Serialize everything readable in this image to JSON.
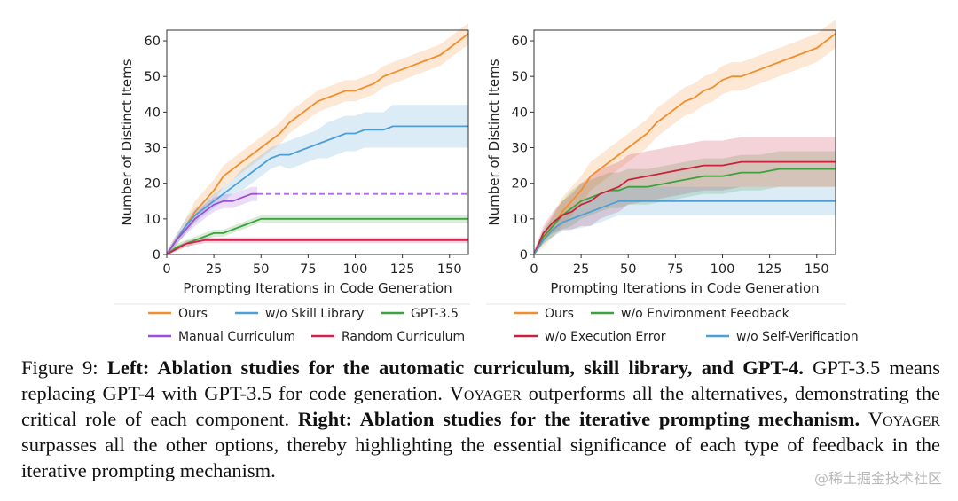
{
  "chart_data": [
    {
      "type": "line",
      "panel": "left",
      "xlabel": "Prompting Iterations in Code Generation",
      "ylabel": "Number of Distinct Items",
      "xlim": [
        0,
        160
      ],
      "ylim": [
        0,
        63
      ],
      "xticks": [
        0,
        25,
        50,
        75,
        100,
        125,
        150
      ],
      "yticks": [
        0,
        10,
        20,
        30,
        40,
        50,
        60
      ],
      "series": [
        {
          "key": "ours",
          "name": "Ours",
          "color": "#f28e2b",
          "dashed": false,
          "x": [
            0,
            5,
            10,
            15,
            20,
            25,
            30,
            35,
            40,
            45,
            50,
            55,
            60,
            65,
            70,
            75,
            80,
            85,
            90,
            95,
            100,
            105,
            110,
            115,
            120,
            125,
            130,
            135,
            140,
            145,
            150,
            155,
            160
          ],
          "y": [
            0,
            4,
            8,
            12,
            15,
            18,
            22,
            24,
            26,
            28,
            30,
            32,
            34,
            37,
            39,
            41,
            43,
            44,
            45,
            46,
            46,
            47,
            48,
            50,
            51,
            52,
            53,
            54,
            55,
            56,
            58,
            60,
            62
          ],
          "band": [
            1,
            1.5,
            2,
            3,
            3,
            3,
            3,
            3,
            3,
            3,
            3,
            3,
            3,
            3,
            3,
            3,
            3,
            3,
            3,
            3,
            3,
            3,
            3,
            3,
            3,
            3,
            3,
            3,
            3,
            3,
            3,
            3,
            3
          ]
        },
        {
          "key": "skill",
          "name": "w/o Skill Library",
          "color": "#4e9fd6",
          "dashed": false,
          "x": [
            0,
            5,
            10,
            15,
            20,
            25,
            30,
            35,
            40,
            45,
            50,
            55,
            60,
            65,
            70,
            75,
            80,
            85,
            90,
            95,
            100,
            105,
            110,
            115,
            120,
            125,
            130,
            135,
            140,
            145,
            150,
            155,
            160
          ],
          "y": [
            0,
            4,
            8,
            11,
            13,
            15,
            17,
            19,
            21,
            23,
            25,
            27,
            28,
            28,
            29,
            30,
            31,
            32,
            33,
            34,
            34,
            35,
            35,
            35,
            36,
            36,
            36,
            36,
            36,
            36,
            36,
            36,
            36
          ],
          "band": [
            1,
            1.5,
            2,
            2,
            2,
            2,
            2,
            2,
            3,
            3,
            3,
            3,
            3,
            4,
            4,
            4,
            4,
            5,
            5,
            5,
            5,
            5,
            5,
            5,
            6,
            6,
            6,
            6,
            6,
            6,
            6,
            6,
            6
          ]
        },
        {
          "key": "gpt35",
          "name": "GPT-3.5",
          "color": "#3ea03e",
          "dashed": false,
          "x": [
            0,
            5,
            10,
            15,
            20,
            25,
            30,
            35,
            40,
            45,
            50,
            55,
            60,
            80,
            100,
            120,
            140,
            160
          ],
          "y": [
            0,
            2,
            3,
            4,
            5,
            6,
            6,
            7,
            8,
            9,
            10,
            10,
            10,
            10,
            10,
            10,
            10,
            10
          ],
          "band": [
            0.5,
            1,
            1,
            1,
            1,
            1,
            1,
            1,
            1,
            1,
            1,
            1,
            1,
            1,
            1,
            1,
            1,
            1
          ]
        },
        {
          "key": "manual",
          "name": "Manual Curriculum",
          "color": "#9b4fd8",
          "dashed": false,
          "x": [
            0,
            5,
            10,
            15,
            20,
            25,
            30,
            35,
            40,
            45,
            48
          ],
          "y": [
            0,
            4,
            7,
            10,
            12,
            14,
            15,
            15,
            16,
            17,
            17
          ],
          "band": [
            0.5,
            1,
            1.5,
            2,
            2,
            2,
            2,
            2,
            2,
            2,
            2
          ]
        },
        {
          "key": "manual_ext",
          "name": "",
          "color": "#b06ae6",
          "dashed": true,
          "x": [
            48,
            160
          ],
          "y": [
            17,
            17
          ],
          "band": [
            0,
            0
          ]
        },
        {
          "key": "random",
          "name": "Random Curriculum",
          "color": "#d6204e",
          "dashed": false,
          "x": [
            0,
            5,
            10,
            15,
            20,
            25,
            30,
            35,
            40,
            60,
            80,
            100,
            120,
            140,
            160
          ],
          "y": [
            0,
            1.5,
            3,
            3.5,
            4,
            4,
            4,
            4,
            4,
            4,
            4,
            4,
            4,
            4,
            4
          ],
          "band": [
            0.3,
            0.6,
            0.8,
            0.8,
            0.8,
            0.8,
            0.8,
            0.8,
            0.8,
            0.8,
            0.8,
            0.8,
            0.8,
            0.8,
            0.8
          ]
        }
      ],
      "legend_rows": [
        [
          {
            "key": "ours",
            "label": "Ours"
          },
          {
            "key": "skill",
            "label": "w/o Skill Library"
          },
          {
            "key": "gpt35",
            "label": "GPT-3.5"
          }
        ],
        [
          {
            "key": "manual",
            "label": "Manual Curriculum"
          },
          {
            "key": "random",
            "label": "Random Curriculum"
          }
        ]
      ]
    },
    {
      "type": "line",
      "panel": "right",
      "xlabel": "Prompting Iterations in Code Generation",
      "ylabel": "Number of Distinct Items",
      "xlim": [
        0,
        160
      ],
      "ylim": [
        0,
        63
      ],
      "xticks": [
        0,
        25,
        50,
        75,
        100,
        125,
        150
      ],
      "yticks": [
        0,
        10,
        20,
        30,
        40,
        50,
        60
      ],
      "series": [
        {
          "key": "ours",
          "name": "Ours",
          "color": "#f28e2b",
          "dashed": false,
          "x": [
            0,
            5,
            10,
            15,
            20,
            25,
            30,
            35,
            40,
            45,
            50,
            55,
            60,
            65,
            70,
            75,
            80,
            85,
            90,
            95,
            100,
            105,
            110,
            115,
            120,
            125,
            130,
            135,
            140,
            145,
            150,
            155,
            160
          ],
          "y": [
            0,
            4,
            8,
            12,
            15,
            18,
            22,
            24,
            26,
            28,
            30,
            32,
            34,
            37,
            39,
            41,
            43,
            44,
            46,
            47,
            49,
            50,
            50,
            51,
            52,
            53,
            54,
            55,
            56,
            57,
            58,
            60,
            62
          ],
          "band": [
            1,
            2,
            3,
            4,
            4,
            4,
            4,
            4,
            4,
            4,
            4,
            4,
            4,
            4,
            4,
            4,
            4,
            4,
            4,
            4,
            4,
            4,
            4,
            4,
            4,
            4,
            4,
            4,
            4,
            4,
            4,
            4,
            4
          ]
        },
        {
          "key": "envfb",
          "name": "w/o Environment Feedback",
          "color": "#3ea03e",
          "dashed": false,
          "x": [
            0,
            5,
            10,
            15,
            20,
            25,
            30,
            35,
            40,
            45,
            50,
            60,
            70,
            80,
            90,
            100,
            110,
            120,
            130,
            140,
            150,
            160
          ],
          "y": [
            0,
            5,
            8,
            11,
            13,
            15,
            16,
            17,
            18,
            18,
            19,
            19,
            20,
            21,
            22,
            22,
            23,
            23,
            24,
            24,
            24,
            24
          ],
          "band": [
            1,
            2,
            3,
            4,
            5,
            5,
            5,
            5,
            5,
            5,
            5,
            5,
            5,
            5,
            5,
            5,
            5,
            5,
            5,
            5,
            5,
            5
          ]
        },
        {
          "key": "execerr",
          "name": "w/o Execution Error",
          "color": "#c8223e",
          "dashed": false,
          "x": [
            0,
            5,
            10,
            15,
            20,
            25,
            30,
            35,
            40,
            45,
            50,
            60,
            70,
            80,
            90,
            100,
            110,
            120,
            130,
            140,
            150,
            160
          ],
          "y": [
            0,
            6,
            9,
            11,
            12,
            14,
            15,
            17,
            18,
            19,
            21,
            22,
            23,
            24,
            25,
            25,
            26,
            26,
            26,
            26,
            26,
            26
          ],
          "band": [
            1,
            2,
            3,
            4,
            5,
            6,
            7,
            7,
            7,
            7,
            7,
            7,
            7,
            7,
            7,
            7,
            7,
            7,
            7,
            7,
            7,
            7
          ]
        },
        {
          "key": "selfver",
          "name": "w/o Self-Verification",
          "color": "#4e9fd6",
          "dashed": false,
          "x": [
            0,
            5,
            10,
            15,
            20,
            25,
            30,
            35,
            40,
            45,
            50,
            60,
            80,
            100,
            120,
            140,
            160
          ],
          "y": [
            0,
            4,
            7,
            9,
            10,
            11,
            12,
            13,
            14,
            15,
            15,
            15,
            15,
            15,
            15,
            15,
            15
          ],
          "band": [
            0.5,
            1,
            2,
            2.5,
            3,
            3.5,
            4,
            4,
            4,
            4,
            4,
            4,
            4,
            4,
            4,
            4,
            4
          ]
        }
      ],
      "legend_rows": [
        [
          {
            "key": "ours",
            "label": "Ours"
          },
          {
            "key": "envfb",
            "label": "w/o Environment Feedback"
          }
        ],
        [
          {
            "key": "execerr",
            "label": "w/o Execution Error"
          },
          {
            "key": "selfver",
            "label": "w/o Self-Verification"
          }
        ]
      ]
    }
  ],
  "caption": {
    "fig_label": "Figure 9: ",
    "left_bold": "Left: Ablation studies for the automatic curriculum, skill library, and GPT-4.",
    "t1": " GPT-3.5 means replacing GPT-4 with GPT-3.5 for code generation. ",
    "voyager_1": "Voyager",
    "t2": " outperforms all the alternatives, demonstrating the critical role of each component. ",
    "right_bold": "Right: Ablation studies for the iterative prompting mechanism.",
    "t3": " ",
    "voyager_2": "Voyager",
    "t4": " surpasses all the other options, thereby highlighting the essential significance of each type of feedback in the iterative prompting mechanism."
  },
  "watermark": "@稀土掘金技术社区"
}
